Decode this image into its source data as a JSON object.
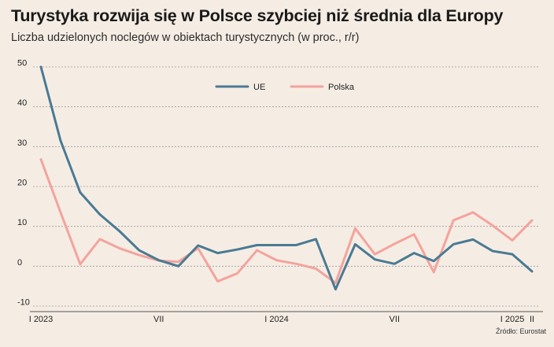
{
  "chart_data": {
    "type": "line",
    "title": "Turystyka rozwija się w Polsce szybciej niż średnia dla Europy",
    "subtitle": "Liczba udzielonych noclegów w obiektach turystycznych (w proc., r/r)",
    "source": "Źródło: Eurostat",
    "x": [
      "2023-01",
      "2023-02",
      "2023-03",
      "2023-04",
      "2023-05",
      "2023-06",
      "2023-07",
      "2023-08",
      "2023-09",
      "2023-10",
      "2023-11",
      "2023-12",
      "2024-01",
      "2024-02",
      "2024-03",
      "2024-04",
      "2024-05",
      "2024-06",
      "2024-07",
      "2024-08",
      "2024-09",
      "2024-10",
      "2024-11",
      "2024-12",
      "2025-01",
      "2025-02"
    ],
    "x_tick_labels": [
      {
        "at": "2023-01",
        "label": "I 2023"
      },
      {
        "at": "2023-07",
        "label": "VII"
      },
      {
        "at": "2024-01",
        "label": "I 2024"
      },
      {
        "at": "2024-07",
        "label": "VII"
      },
      {
        "at": "2025-01",
        "label": "I 2025"
      },
      {
        "at": "2025-02",
        "label": "II"
      }
    ],
    "ylim": [
      -10,
      50
    ],
    "yticks": [
      -10,
      0,
      10,
      20,
      30,
      40,
      50
    ],
    "grid": true,
    "legend_position": "top-center",
    "series": [
      {
        "name": "UE",
        "color": "#4a7a94",
        "values": [
          50,
          31.5,
          18.5,
          13,
          8.8,
          4,
          1.5,
          0,
          5.2,
          3.3,
          4.2,
          5.3,
          5.3,
          5.3,
          6.8,
          -5.8,
          5.5,
          1.7,
          0.6,
          3.3,
          1.3,
          5.5,
          6.7,
          3.8,
          3,
          -1.3
        ]
      },
      {
        "name": "Polska",
        "color": "#f4a39d",
        "values": [
          26.8,
          13.5,
          0.5,
          6.8,
          4.5,
          2.8,
          1.4,
          1.1,
          4.5,
          -3.8,
          -1.8,
          4,
          1.5,
          0.6,
          -0.6,
          -4.2,
          9.5,
          3,
          5.6,
          8,
          -1.5,
          11.5,
          13.5,
          10.2,
          6.5,
          11.5
        ]
      }
    ]
  }
}
